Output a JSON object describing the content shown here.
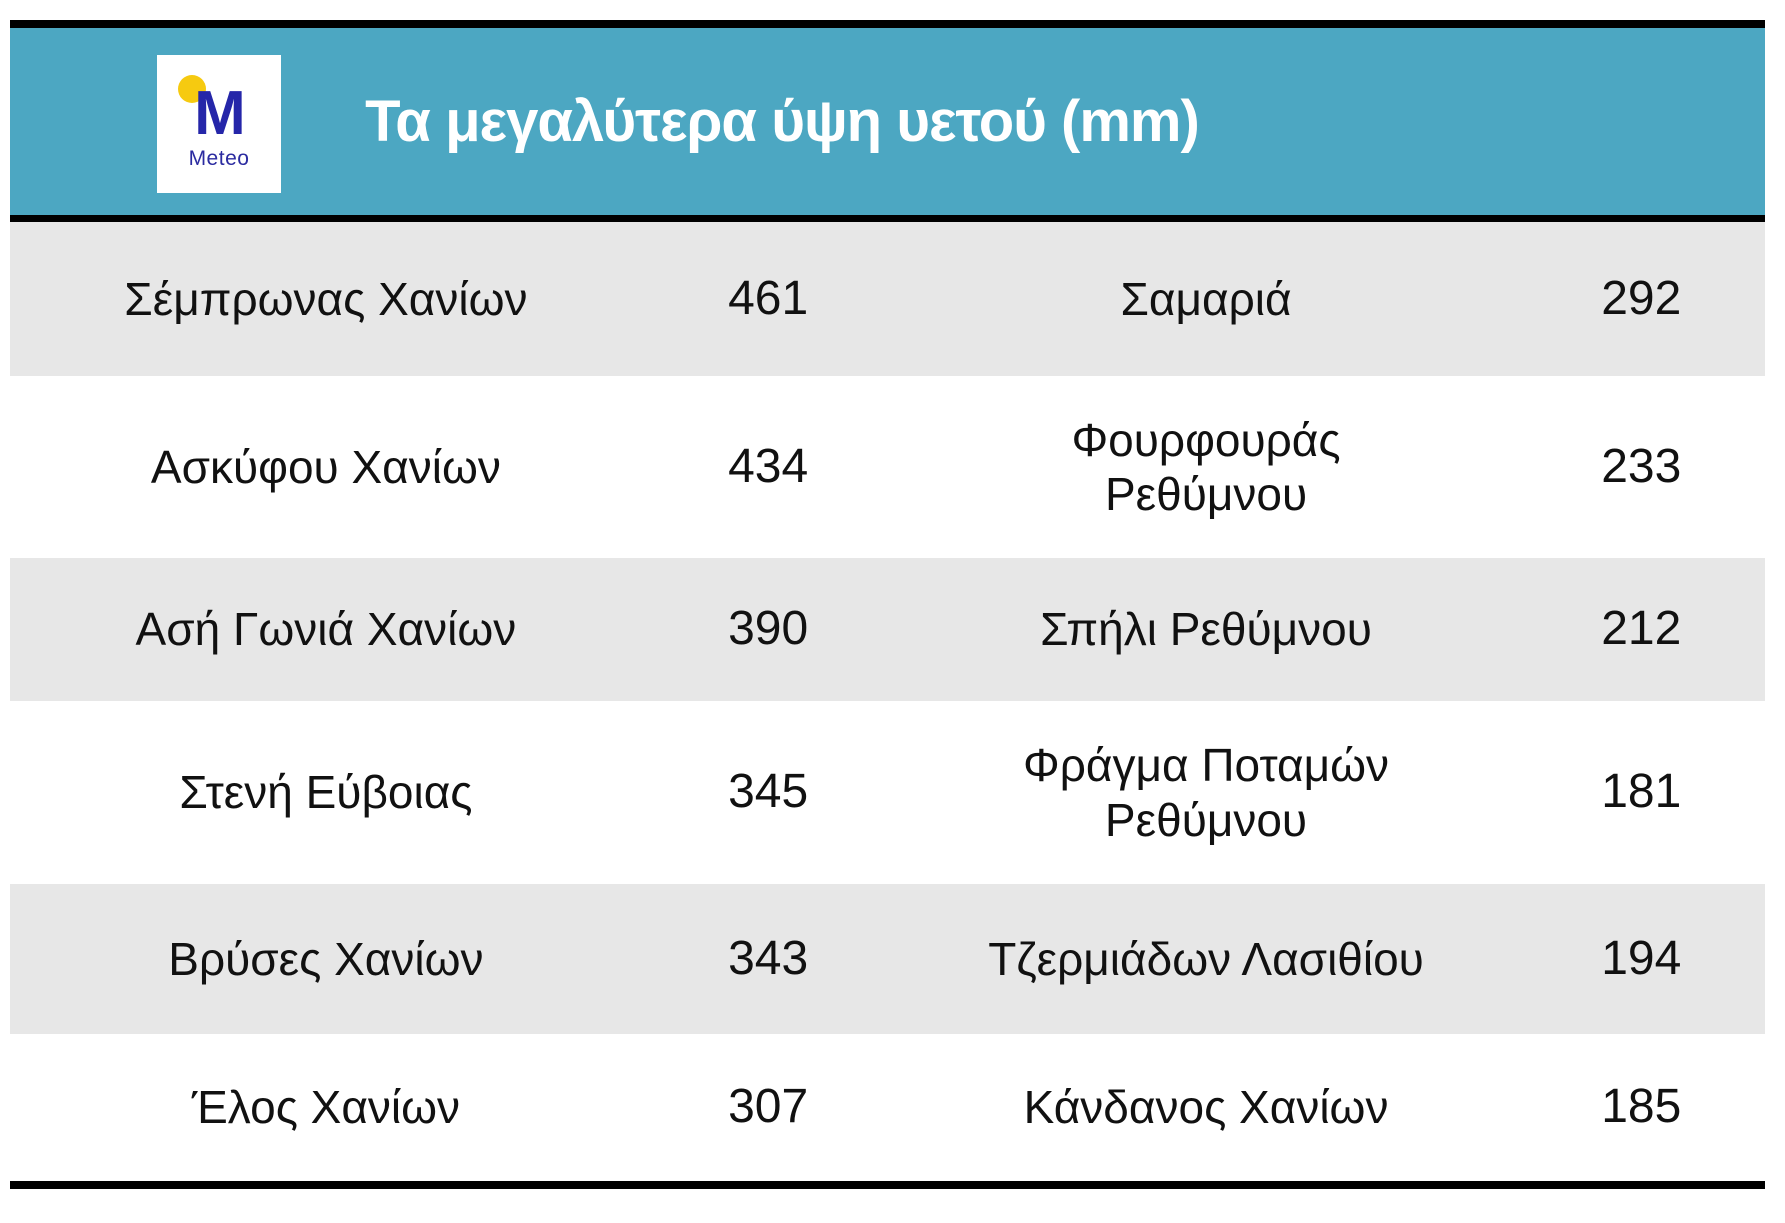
{
  "header": {
    "title": "Τα μεγαλύτερα ύψη υετού (mm)",
    "logo": {
      "letter": "M",
      "brand": "Meteo"
    }
  },
  "colors": {
    "header_teal": "#4ca7c2",
    "row_gray": "#e7e7e7",
    "row_white": "#ffffff",
    "border_black": "#000000",
    "logo_blue": "#2526a9",
    "logo_yellow": "#f6ca10",
    "title_text": "#ffffff"
  },
  "table": {
    "rows": [
      [
        "Σέμπρωνας Χανίων",
        "461",
        "Σαμαριά",
        "292"
      ],
      [
        "Ασκύφου Χανίων",
        "434",
        "Φουρφουράς\nΡεθύμνου",
        "233"
      ],
      [
        "Ασή Γωνιά Χανίων",
        "390",
        "Σπήλι Ρεθύμνου",
        "212"
      ],
      [
        "Στενή Εύβοιας",
        "345",
        "Φράγμα Ποταμών\nΡεθύμνου",
        "181"
      ],
      [
        "Βρύσες Χανίων",
        "343",
        "Τζερμιάδων Λασιθίου",
        "194"
      ],
      [
        "Έλος Χανίων",
        "307",
        "Κάνδανος Χανίων",
        "185"
      ]
    ]
  },
  "chart_data": {
    "type": "table",
    "title": "Τα μεγαλύτερα ύψη υετού (mm)",
    "unit": "mm",
    "entries": [
      {
        "station": "Σέμπρωνας Χανίων",
        "value": 461
      },
      {
        "station": "Σαμαριά",
        "value": 292
      },
      {
        "station": "Ασκύφου Χανίων",
        "value": 434
      },
      {
        "station": "Φουρφουράς Ρεθύμνου",
        "value": 233
      },
      {
        "station": "Ασή Γωνιά Χανίων",
        "value": 390
      },
      {
        "station": "Σπήλι Ρεθύμνου",
        "value": 212
      },
      {
        "station": "Στενή Εύβοιας",
        "value": 345
      },
      {
        "station": "Φράγμα Ποταμών Ρεθύμνου",
        "value": 181
      },
      {
        "station": "Βρύσες Χανίων",
        "value": 343
      },
      {
        "station": "Τζερμιάδων Λασιθίου",
        "value": 194
      },
      {
        "station": "Έλος Χανίων",
        "value": 307
      },
      {
        "station": "Κάνδανος Χανίων",
        "value": 185
      }
    ]
  }
}
